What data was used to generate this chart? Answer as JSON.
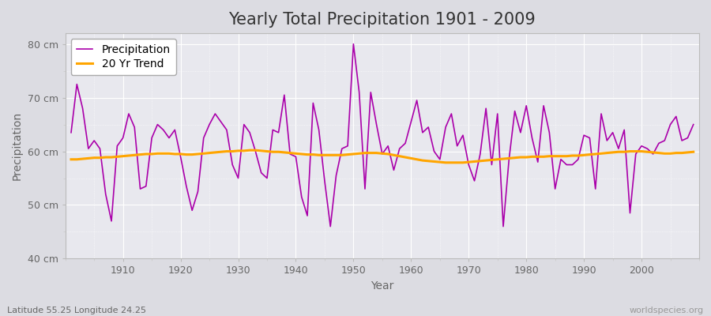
{
  "title": "Yearly Total Precipitation 1901 - 2009",
  "xlabel": "Year",
  "ylabel": "Precipitation",
  "subtitle_left": "Latitude 55.25 Longitude 24.25",
  "subtitle_right": "worldspecies.org",
  "ylim": [
    40,
    82
  ],
  "yticks": [
    40,
    50,
    60,
    70,
    80
  ],
  "ytick_labels": [
    "40 cm",
    "50 cm",
    "60 cm",
    "70 cm",
    "80 cm"
  ],
  "xlim": [
    1900,
    2010
  ],
  "xticks": [
    1910,
    1920,
    1930,
    1940,
    1950,
    1960,
    1970,
    1980,
    1990,
    2000
  ],
  "years": [
    1901,
    1902,
    1903,
    1904,
    1905,
    1906,
    1907,
    1908,
    1909,
    1910,
    1911,
    1912,
    1913,
    1914,
    1915,
    1916,
    1917,
    1918,
    1919,
    1920,
    1921,
    1922,
    1923,
    1924,
    1925,
    1926,
    1927,
    1928,
    1929,
    1930,
    1931,
    1932,
    1933,
    1934,
    1935,
    1936,
    1937,
    1938,
    1939,
    1940,
    1941,
    1942,
    1943,
    1944,
    1945,
    1946,
    1947,
    1948,
    1949,
    1950,
    1951,
    1952,
    1953,
    1954,
    1955,
    1956,
    1957,
    1958,
    1959,
    1960,
    1961,
    1962,
    1963,
    1964,
    1965,
    1966,
    1967,
    1968,
    1969,
    1970,
    1971,
    1972,
    1973,
    1974,
    1975,
    1976,
    1977,
    1978,
    1979,
    1980,
    1981,
    1982,
    1983,
    1984,
    1985,
    1986,
    1987,
    1988,
    1989,
    1990,
    1991,
    1992,
    1993,
    1994,
    1995,
    1996,
    1997,
    1998,
    1999,
    2000,
    2001,
    2002,
    2003,
    2004,
    2005,
    2006,
    2007,
    2008,
    2009
  ],
  "precip": [
    63.5,
    72.5,
    68.0,
    60.5,
    62.0,
    60.5,
    52.0,
    47.0,
    61.0,
    62.5,
    67.0,
    64.5,
    53.0,
    53.5,
    62.5,
    65.0,
    64.0,
    62.5,
    64.0,
    59.0,
    53.5,
    49.0,
    52.5,
    62.5,
    65.0,
    67.0,
    65.5,
    64.0,
    57.5,
    55.0,
    65.0,
    63.5,
    60.0,
    56.0,
    55.0,
    64.0,
    63.5,
    70.5,
    59.5,
    59.0,
    51.5,
    48.0,
    69.0,
    64.0,
    54.5,
    46.0,
    55.5,
    60.5,
    61.0,
    80.0,
    71.0,
    53.0,
    71.0,
    65.0,
    59.5,
    61.0,
    56.5,
    60.5,
    61.5,
    65.5,
    69.5,
    63.5,
    64.5,
    60.0,
    58.5,
    64.5,
    67.0,
    61.0,
    63.0,
    57.5,
    54.5,
    59.5,
    68.0,
    57.5,
    67.0,
    46.0,
    58.5,
    67.5,
    63.5,
    68.5,
    62.5,
    58.0,
    68.5,
    63.5,
    53.0,
    58.5,
    57.5,
    57.5,
    58.5,
    63.0,
    62.5,
    53.0,
    67.0,
    62.0,
    63.5,
    60.5,
    64.0,
    48.5,
    59.5,
    61.0,
    60.5,
    59.5,
    61.5,
    62.0,
    65.0,
    66.5,
    62.0,
    62.5,
    65.0
  ],
  "trend": [
    58.5,
    58.5,
    58.6,
    58.7,
    58.8,
    58.8,
    58.9,
    58.9,
    59.0,
    59.1,
    59.2,
    59.3,
    59.4,
    59.5,
    59.5,
    59.6,
    59.6,
    59.6,
    59.5,
    59.5,
    59.4,
    59.4,
    59.5,
    59.6,
    59.7,
    59.8,
    59.9,
    60.0,
    60.0,
    60.1,
    60.1,
    60.2,
    60.2,
    60.1,
    60.0,
    59.9,
    59.9,
    59.8,
    59.7,
    59.6,
    59.5,
    59.4,
    59.4,
    59.3,
    59.3,
    59.3,
    59.3,
    59.3,
    59.4,
    59.5,
    59.6,
    59.7,
    59.7,
    59.7,
    59.6,
    59.5,
    59.3,
    59.1,
    58.9,
    58.7,
    58.5,
    58.3,
    58.2,
    58.1,
    58.0,
    57.9,
    57.9,
    57.9,
    57.9,
    58.0,
    58.1,
    58.2,
    58.3,
    58.4,
    58.5,
    58.6,
    58.7,
    58.8,
    58.9,
    58.9,
    59.0,
    59.0,
    59.0,
    59.1,
    59.1,
    59.1,
    59.1,
    59.2,
    59.2,
    59.3,
    59.4,
    59.5,
    59.6,
    59.7,
    59.8,
    59.9,
    59.9,
    60.0,
    60.0,
    60.0,
    59.9,
    59.8,
    59.7,
    59.6,
    59.6,
    59.7,
    59.7,
    59.8,
    59.9
  ],
  "precip_color": "#AA00AA",
  "trend_color": "#FFA500",
  "bg_color": "#DCDCE2",
  "plot_bg_color": "#E8E8EE",
  "grid_color_major": "#FFFFFF",
  "grid_color_minor": "#FFFFFF",
  "title_fontsize": 15,
  "label_fontsize": 10,
  "tick_fontsize": 9,
  "tick_color": "#666666",
  "title_color": "#333333"
}
